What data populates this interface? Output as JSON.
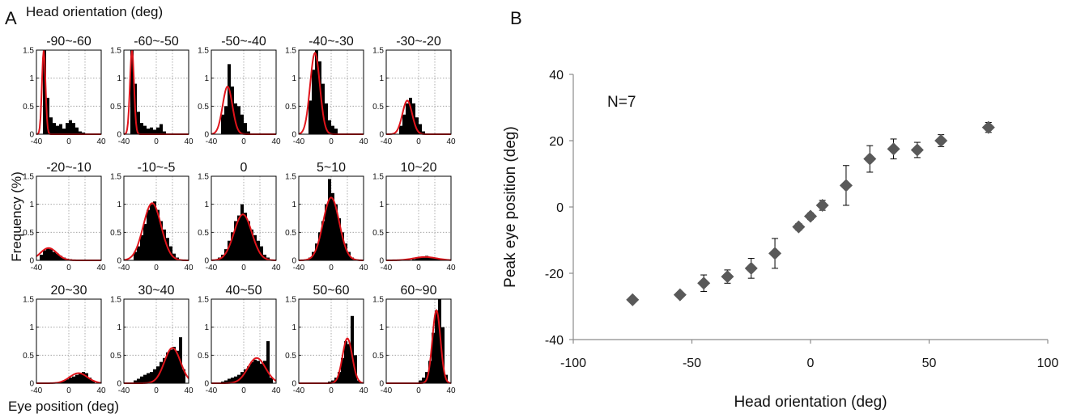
{
  "panels": {
    "a_letter": "A",
    "b_letter": "B"
  },
  "panel_a": {
    "top_label": "Head orientation (deg)",
    "ylabel": "Frequency (%)",
    "xlabel": "Eye position (deg)"
  },
  "chart_data": [
    {
      "type": "bar",
      "panel": "A",
      "layout": "grid-3x5",
      "xlim": [
        -40,
        40
      ],
      "ylim": [
        0,
        1.5
      ],
      "xticks": [
        "-40",
        "0",
        "40"
      ],
      "yticks": [
        "0",
        "0.5",
        "1",
        "1.5"
      ],
      "grid": "dotted at x=0,20 and y=0.5,1",
      "fit_color": "#e0141b",
      "bar_color": "#000000",
      "bin_width": 4,
      "bin_starts": [
        -40,
        -36,
        -32,
        -28,
        -24,
        -20,
        -16,
        -12,
        -8,
        -4,
        0,
        4,
        8,
        12,
        16,
        20,
        24,
        28,
        32,
        36
      ],
      "subplots": [
        {
          "title": "-90~-60",
          "values": [
            0,
            0,
            1.5,
            0.65,
            0.3,
            0.2,
            0.15,
            0.18,
            0.1,
            0.2,
            0.25,
            0.2,
            0.12,
            0.05,
            0.03,
            0,
            0,
            0,
            0,
            0
          ],
          "fit": {
            "amp": 1.5,
            "mu": -31,
            "sigma": 2.2
          }
        },
        {
          "title": "-60~-50",
          "values": [
            0,
            0,
            1.5,
            0.9,
            0.4,
            0.2,
            0.15,
            0.1,
            0.12,
            0.08,
            0.12,
            0.18,
            0.05,
            0,
            0,
            0,
            0,
            0,
            0,
            0
          ],
          "fit": {
            "amp": 1.5,
            "mu": -30,
            "sigma": 2.5
          }
        },
        {
          "title": "-50~-40",
          "values": [
            0,
            0,
            0,
            0.35,
            0.5,
            1.25,
            0.85,
            0.55,
            0.5,
            0.35,
            0.2,
            0.05,
            0,
            0,
            0,
            0,
            0,
            0,
            0,
            0
          ],
          "fit": {
            "amp": 0.85,
            "mu": -20,
            "sigma": 6
          }
        },
        {
          "title": "-40~-30",
          "values": [
            0,
            0,
            0,
            0.6,
            1.15,
            1.5,
            1.3,
            0.9,
            0.55,
            0.25,
            0.15,
            0.1,
            0,
            0,
            0,
            0,
            0,
            0,
            0,
            0
          ],
          "fit": {
            "amp": 1.45,
            "mu": -20,
            "sigma": 6
          }
        },
        {
          "title": "-30~-20",
          "values": [
            0,
            0,
            0,
            0,
            0.15,
            0.35,
            0.55,
            0.65,
            0.55,
            0.3,
            0.18,
            0.05,
            0,
            0,
            0,
            0,
            0,
            0,
            0,
            0
          ],
          "fit": {
            "amp": 0.6,
            "mu": -14,
            "sigma": 6
          }
        },
        {
          "title": "-20~-10",
          "values": [
            0,
            0.1,
            0.18,
            0.22,
            0.2,
            0.15,
            0.12,
            0.08,
            0.05,
            0.03,
            0.02,
            0,
            0,
            0,
            0,
            0,
            0,
            0,
            0,
            0
          ],
          "fit": {
            "amp": 0.22,
            "mu": -25,
            "sigma": 10
          }
        },
        {
          "title": "-10~-5",
          "values": [
            0,
            0,
            0,
            0.15,
            0.25,
            0.45,
            0.65,
            0.9,
            1.0,
            1.05,
            0.9,
            0.7,
            0.55,
            0.4,
            0.25,
            0.12,
            0.05,
            0,
            0,
            0
          ],
          "fit": {
            "amp": 1.02,
            "mu": -5,
            "sigma": 11
          }
        },
        {
          "title": "0",
          "values": [
            0,
            0,
            0.05,
            0.1,
            0.2,
            0.35,
            0.5,
            0.7,
            0.8,
            1.0,
            0.85,
            0.7,
            0.55,
            0.45,
            0.35,
            0.25,
            0.1,
            0.05,
            0,
            0
          ],
          "fit": {
            "amp": 0.82,
            "mu": -1,
            "sigma": 11
          }
        },
        {
          "title": "5~10",
          "values": [
            0,
            0,
            0,
            0.05,
            0.15,
            0.3,
            0.5,
            0.7,
            1.0,
            1.45,
            1.2,
            1.0,
            0.75,
            0.5,
            0.3,
            0.15,
            0.05,
            0,
            0,
            0
          ],
          "fit": {
            "amp": 1.12,
            "mu": 0,
            "sigma": 10
          }
        },
        {
          "title": "10~20",
          "values": [
            0,
            0,
            0,
            0,
            0,
            0,
            0,
            0,
            0.02,
            0.05,
            0.05,
            0.07,
            0.08,
            0.06,
            0.05,
            0.03,
            0.02,
            0,
            0,
            0
          ],
          "fit": {
            "amp": 0.06,
            "mu": 8,
            "sigma": 14
          }
        },
        {
          "title": "20~30",
          "values": [
            0,
            0,
            0,
            0,
            0,
            0,
            0,
            0.02,
            0.05,
            0.07,
            0.1,
            0.12,
            0.15,
            0.18,
            0.2,
            0.18,
            0.1,
            0.05,
            0,
            0
          ],
          "fit": {
            "amp": 0.18,
            "mu": 12,
            "sigma": 11
          }
        },
        {
          "title": "30~40",
          "values": [
            0,
            0,
            0,
            0.05,
            0.08,
            0.12,
            0.15,
            0.18,
            0.2,
            0.25,
            0.3,
            0.38,
            0.45,
            0.55,
            0.6,
            0.65,
            0.58,
            0.82,
            0.25,
            0
          ],
          "fit": {
            "amp": 0.63,
            "mu": 20,
            "sigma": 10
          }
        },
        {
          "title": "40~50",
          "values": [
            0,
            0,
            0,
            0.03,
            0.05,
            0.08,
            0.1,
            0.12,
            0.15,
            0.2,
            0.25,
            0.3,
            0.38,
            0.42,
            0.4,
            0.35,
            0.4,
            0.75,
            0.1,
            0
          ],
          "fit": {
            "amp": 0.45,
            "mu": 16,
            "sigma": 11
          }
        },
        {
          "title": "50~60",
          "values": [
            0,
            0,
            0,
            0,
            0,
            0,
            0,
            0,
            0,
            0.03,
            0.05,
            0.1,
            0.2,
            0.45,
            0.75,
            0.7,
            1.2,
            0.5,
            0.05,
            0
          ],
          "fit": {
            "amp": 0.8,
            "mu": 20,
            "sigma": 6
          }
        },
        {
          "title": "60~90",
          "values": [
            0,
            0,
            0,
            0,
            0,
            0,
            0,
            0,
            0,
            0,
            0.05,
            0.1,
            0.2,
            0.4,
            0.9,
            1.3,
            1.5,
            1.0,
            0.15,
            0
          ],
          "fit": {
            "amp": 1.3,
            "mu": 22,
            "sigma": 5
          }
        }
      ]
    },
    {
      "type": "scatter",
      "panel": "B",
      "annotation": "N=7",
      "xlabel": "Head orientation (deg)",
      "ylabel": "Peak eye position (deg)",
      "xlim": [
        -100,
        100
      ],
      "ylim": [
        -40,
        40
      ],
      "xticks": [
        -100,
        -50,
        0,
        50,
        100
      ],
      "yticks": [
        -40,
        -20,
        0,
        20,
        40
      ],
      "grid": false,
      "marker": "diamond",
      "marker_color": "#595959",
      "points": [
        {
          "x": -75,
          "y": -28,
          "err": 0
        },
        {
          "x": -55,
          "y": -26.5,
          "err": 0.8
        },
        {
          "x": -45,
          "y": -23,
          "err": 2.5
        },
        {
          "x": -35,
          "y": -21,
          "err": 2
        },
        {
          "x": -25,
          "y": -18.5,
          "err": 3
        },
        {
          "x": -15,
          "y": -14,
          "err": 4.5
        },
        {
          "x": -5,
          "y": -6,
          "err": 1
        },
        {
          "x": 0,
          "y": -2.8,
          "err": 1
        },
        {
          "x": 5,
          "y": 0.5,
          "err": 1.5
        },
        {
          "x": 15,
          "y": 6.5,
          "err": 6
        },
        {
          "x": 25,
          "y": 14.5,
          "err": 4
        },
        {
          "x": 35,
          "y": 17.5,
          "err": 3
        },
        {
          "x": 45,
          "y": 17.2,
          "err": 2.3
        },
        {
          "x": 55,
          "y": 20,
          "err": 1.8
        },
        {
          "x": 75,
          "y": 24,
          "err": 1.5
        }
      ]
    }
  ]
}
